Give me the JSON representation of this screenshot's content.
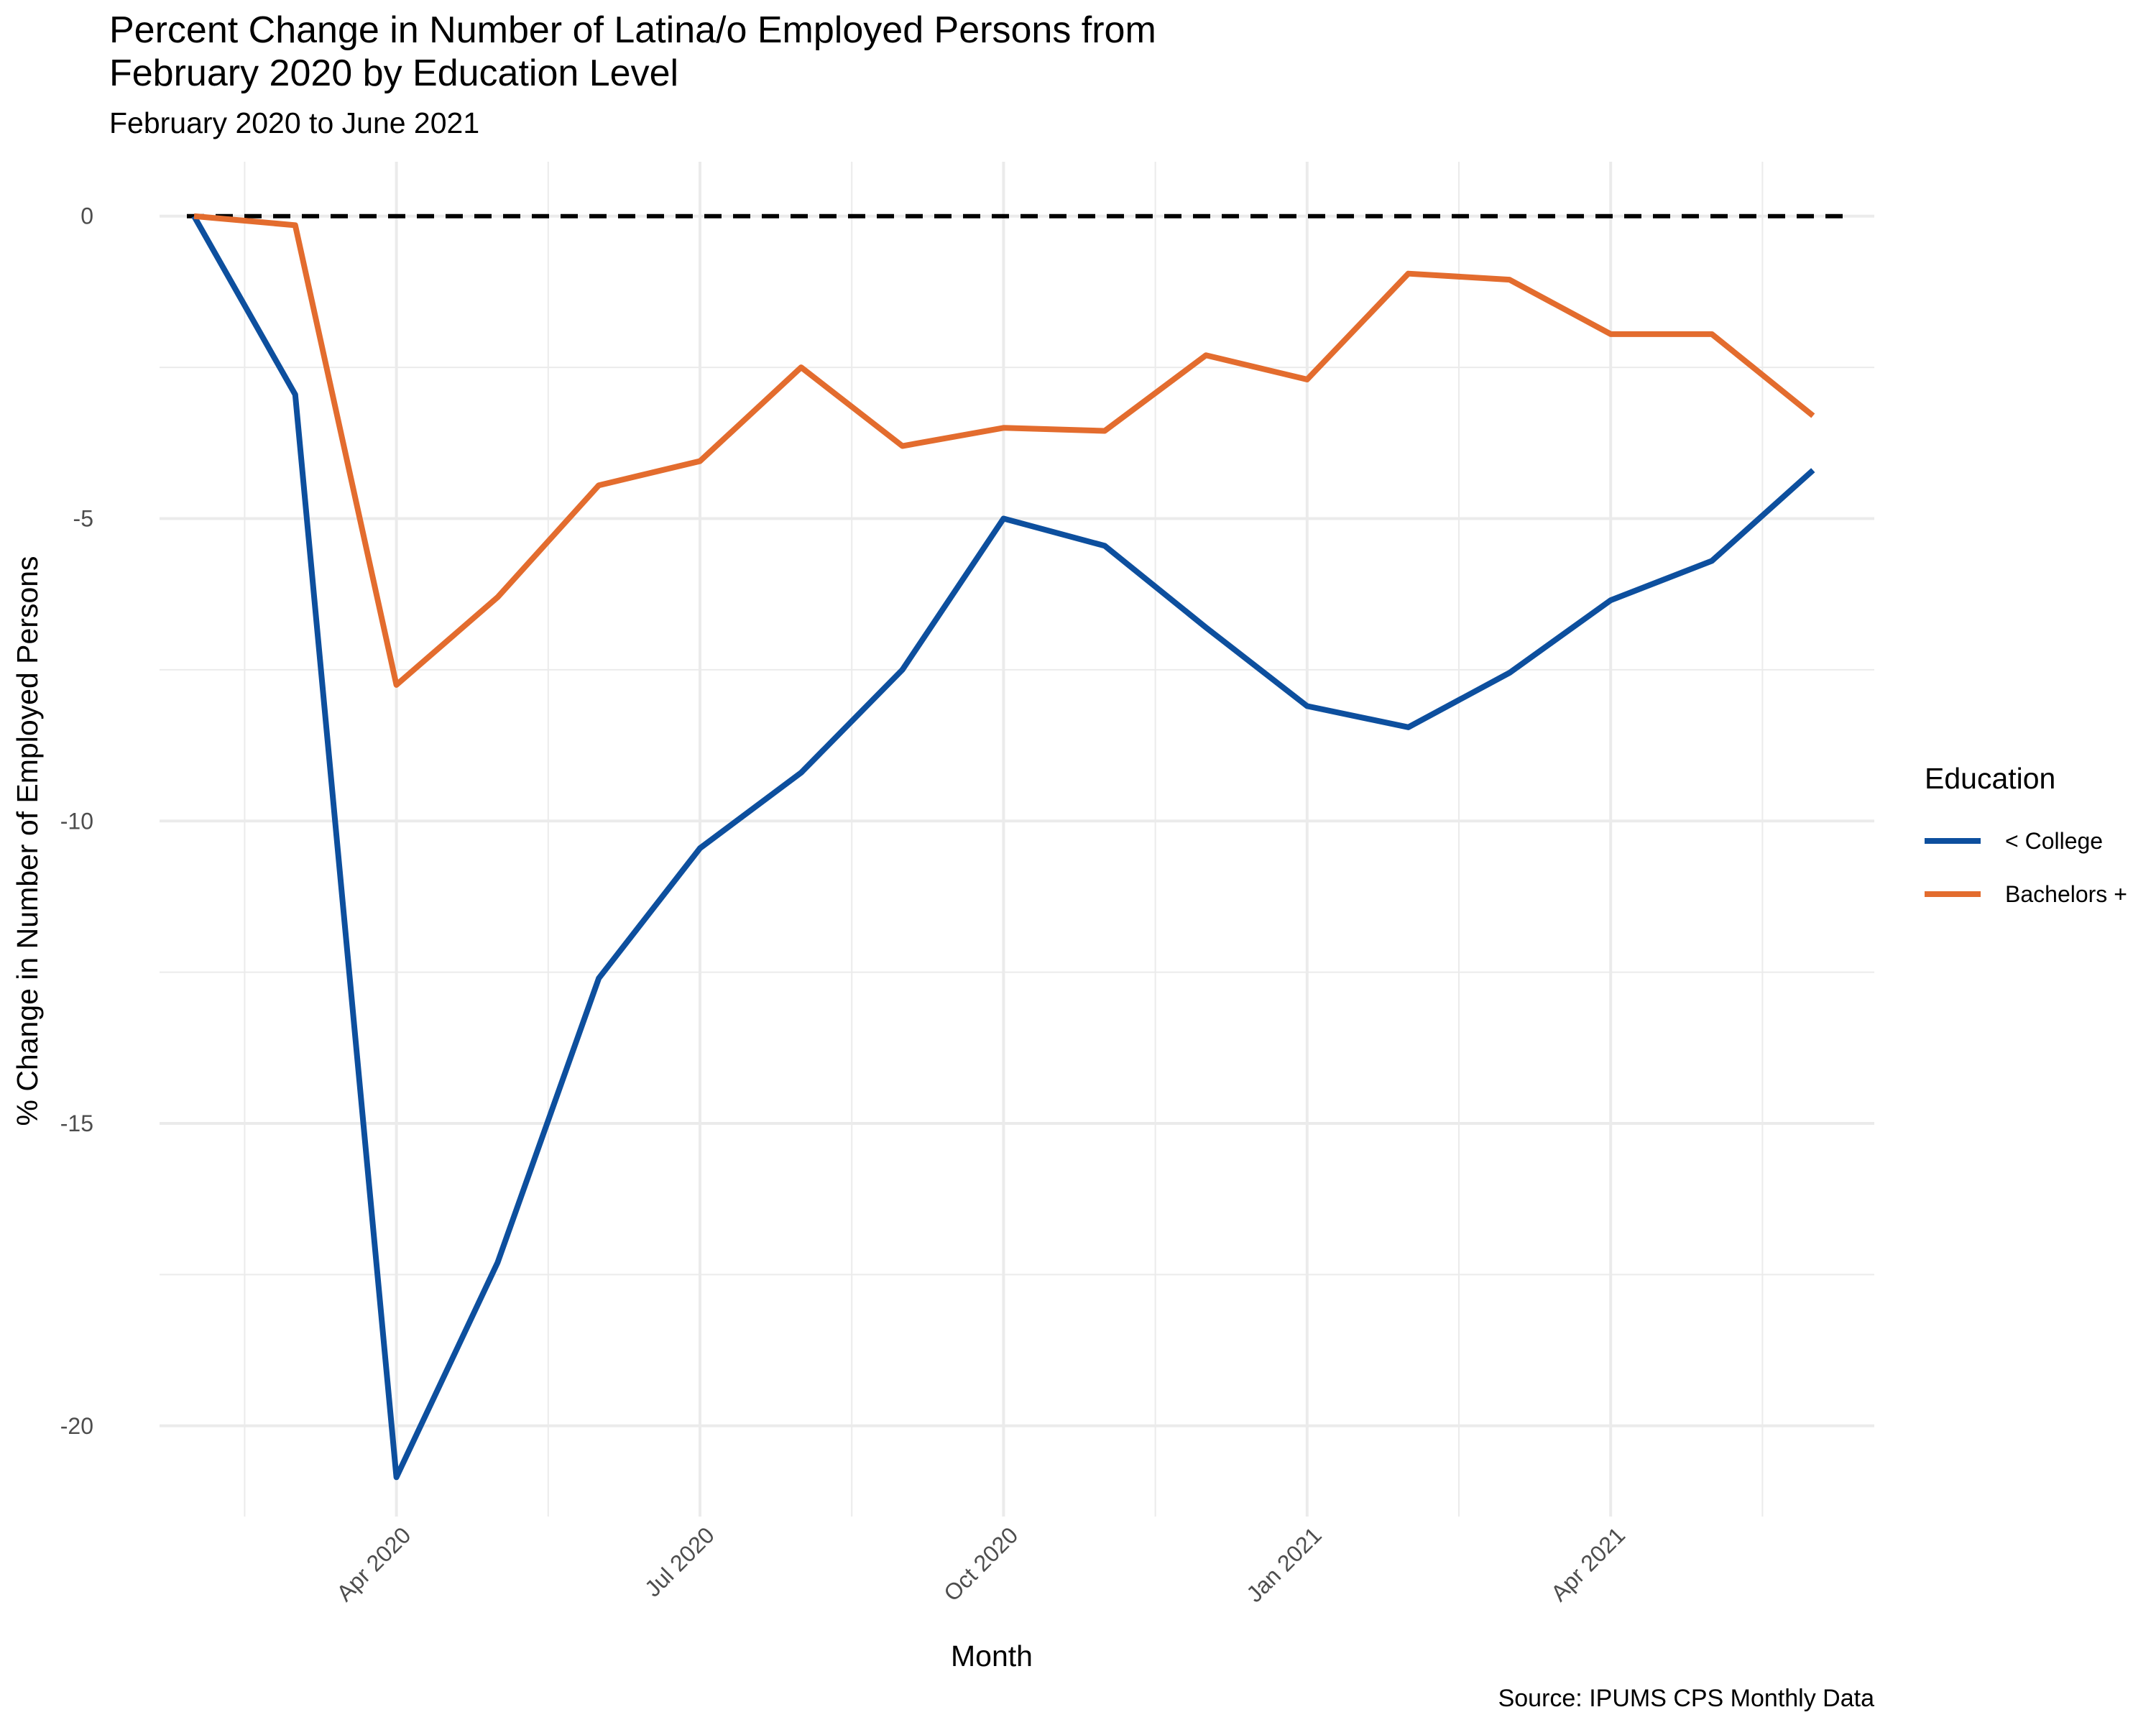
{
  "title_line1": "Percent Change in Number of Latina/o Employed Persons from",
  "title_line2": "February 2020 by Education Level",
  "subtitle": "February 2020 to June 2021",
  "caption": "Source: IPUMS CPS Monthly Data",
  "chart_data": {
    "type": "line",
    "title": "Percent Change in Number of Latina/o Employed Persons from February 2020 by Education Level",
    "subtitle": "February 2020 to June 2021",
    "xlabel": "Month",
    "ylabel": "% Change in Number of Employed Persons",
    "x": [
      "2020-02",
      "2020-03",
      "2020-04",
      "2020-05",
      "2020-06",
      "2020-07",
      "2020-08",
      "2020-09",
      "2020-10",
      "2020-11",
      "2020-12",
      "2021-01",
      "2021-02",
      "2021-03",
      "2021-04",
      "2021-05",
      "2021-06"
    ],
    "x_ticks": [
      "Apr 2020",
      "Jul 2020",
      "Oct 2020",
      "Jan 2021",
      "Apr 2021"
    ],
    "y_ticks": [
      0,
      -5,
      -10,
      -15,
      -20
    ],
    "ylim": [
      -21.5,
      0.9
    ],
    "grid": true,
    "reference_line": {
      "y": 0,
      "style": "dashed",
      "color": "#000000"
    },
    "legend": {
      "title": "Education",
      "position": "right"
    },
    "series": [
      {
        "name": "< College",
        "color": "#0D4F9E",
        "values": [
          0,
          -2.95,
          -20.85,
          -17.3,
          -12.6,
          -10.45,
          -9.2,
          -7.5,
          -5.0,
          -5.45,
          -6.8,
          -8.1,
          -8.45,
          -7.55,
          -6.35,
          -5.7,
          -4.2
        ]
      },
      {
        "name": "Bachelors +",
        "color": "#E36C2E",
        "values": [
          0,
          -0.15,
          -7.75,
          -6.3,
          -4.45,
          -4.05,
          -2.5,
          -3.8,
          -3.5,
          -3.55,
          -2.3,
          -2.7,
          -0.95,
          -1.05,
          -1.95,
          -1.95,
          -3.3
        ]
      }
    ]
  }
}
